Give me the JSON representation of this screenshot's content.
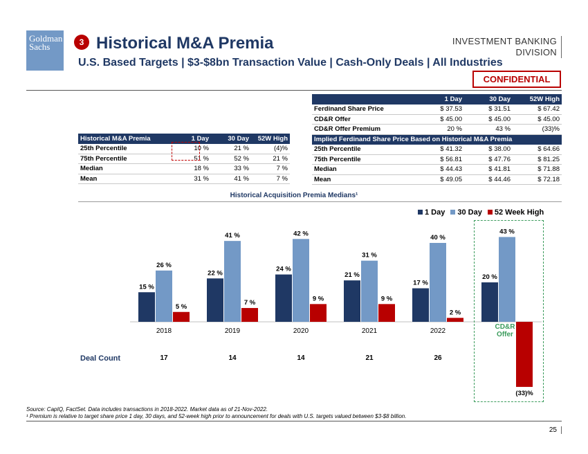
{
  "header": {
    "logo_line1": "Goldman",
    "logo_line2": "Sachs",
    "step": "3",
    "title": "Historical M&A Premia",
    "subtitle": "U.S. Based Targets | $3-$8bn Transaction Value | Cash-Only Deals | All Industries",
    "division_line1": "INVESTMENT BANKING",
    "division_line2": "DIVISION",
    "confidential": "CONFIDENTIAL"
  },
  "left_table": {
    "headers": [
      "Historical M&A Premia",
      "1 Day",
      "30 Day",
      "52W High"
    ],
    "rows": [
      [
        "25th Percentile",
        "10 %",
        "21 %",
        "(4)%"
      ],
      [
        "75th Percentile",
        "51 %",
        "52 %",
        "21 %"
      ],
      [
        "Median",
        "18 %",
        "33 %",
        "7 %"
      ],
      [
        "Mean",
        "31 %",
        "41 %",
        "7 %"
      ]
    ]
  },
  "right_table": {
    "headers": [
      "",
      "1 Day",
      "30 Day",
      "52W High"
    ],
    "rows": [
      [
        "Ferdinand Share Price",
        "$ 37.53",
        "$ 31.51",
        "$ 67.42"
      ],
      [
        "CD&R Offer",
        "$ 45.00",
        "$ 45.00",
        "$ 45.00"
      ],
      [
        "CD&R Offer Premium",
        "20 %",
        "43 %",
        "(33)%"
      ]
    ],
    "subheader": "Implied Ferdinand Share Price Based on Historical M&A Premia",
    "rows2": [
      [
        "25th Percentile",
        "$ 41.32",
        "$ 38.00",
        "$ 64.66"
      ],
      [
        "75th Percentile",
        "$ 56.81",
        "$ 47.76",
        "$ 81.25"
      ],
      [
        "Median",
        "$ 44.43",
        "$ 41.81",
        "$ 71.88"
      ],
      [
        "Mean",
        "$ 49.05",
        "$ 44.46",
        "$ 72.18"
      ]
    ]
  },
  "chart_data": {
    "type": "bar",
    "title": "Historical Acquisition Premia Medians¹",
    "categories": [
      "2018",
      "2019",
      "2020",
      "2021",
      "2022",
      "CD&R Offer"
    ],
    "series": [
      {
        "name": "1 Day",
        "values": [
          15,
          22,
          24,
          21,
          17,
          20
        ],
        "labels": [
          "15 %",
          "22 %",
          "24 %",
          "21 %",
          "17 %",
          "20 %"
        ]
      },
      {
        "name": "30 Day",
        "values": [
          26,
          41,
          42,
          31,
          40,
          43
        ],
        "labels": [
          "26 %",
          "41 %",
          "42 %",
          "31 %",
          "40 %",
          "43 %"
        ]
      },
      {
        "name": "52 Week High",
        "values": [
          5,
          7,
          9,
          9,
          2,
          -33
        ],
        "labels": [
          "5 %",
          "7 %",
          "9 %",
          "9 %",
          "2 %",
          "(33)%"
        ]
      }
    ],
    "colors": [
      "#1f3864",
      "#7399c6",
      "#b80000"
    ],
    "ylim": [
      -35,
      45
    ],
    "grid": false,
    "legend": "top-right"
  },
  "cdr_label_line1": "CD&R",
  "cdr_label_line2": "Offer",
  "deal_count": {
    "label": "Deal Count",
    "values": [
      "17",
      "14",
      "14",
      "21",
      "26"
    ]
  },
  "footer": {
    "source": "Source: CapIQ, FactSet. Data includes transactions in 2018-2022. Market data as of 21-Nov-2022.",
    "footnote": "¹ Premium is relative to target share price 1 day, 30 days, and 52-week high prior to announcement for deals with U.S. targets valued between $3-$8 billion.",
    "page": "25"
  }
}
